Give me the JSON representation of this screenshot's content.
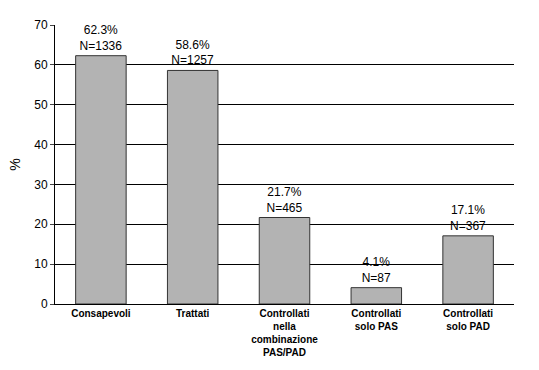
{
  "chart_data": {
    "type": "bar",
    "y_label": "%",
    "categories": [
      "Consapevoli",
      "Trattati",
      "Controllati nella combinazione PAS/PAD",
      "Controllati solo PAS",
      "Controllati solo PAD"
    ],
    "values": [
      62.3,
      58.6,
      21.7,
      4.1,
      17.1
    ],
    "value_labels": [
      "62.3%\nN=1336",
      "58.6%\nN=1257",
      "21.7%\nN=465",
      "4.1%\nN=87",
      "17.1%\nN=367"
    ],
    "data_labels": true,
    "color": "#b3b3b3",
    "ylim": [
      0,
      70
    ],
    "yticks": [
      0,
      10,
      20,
      30,
      40,
      50,
      60,
      70
    ],
    "grid": true
  }
}
